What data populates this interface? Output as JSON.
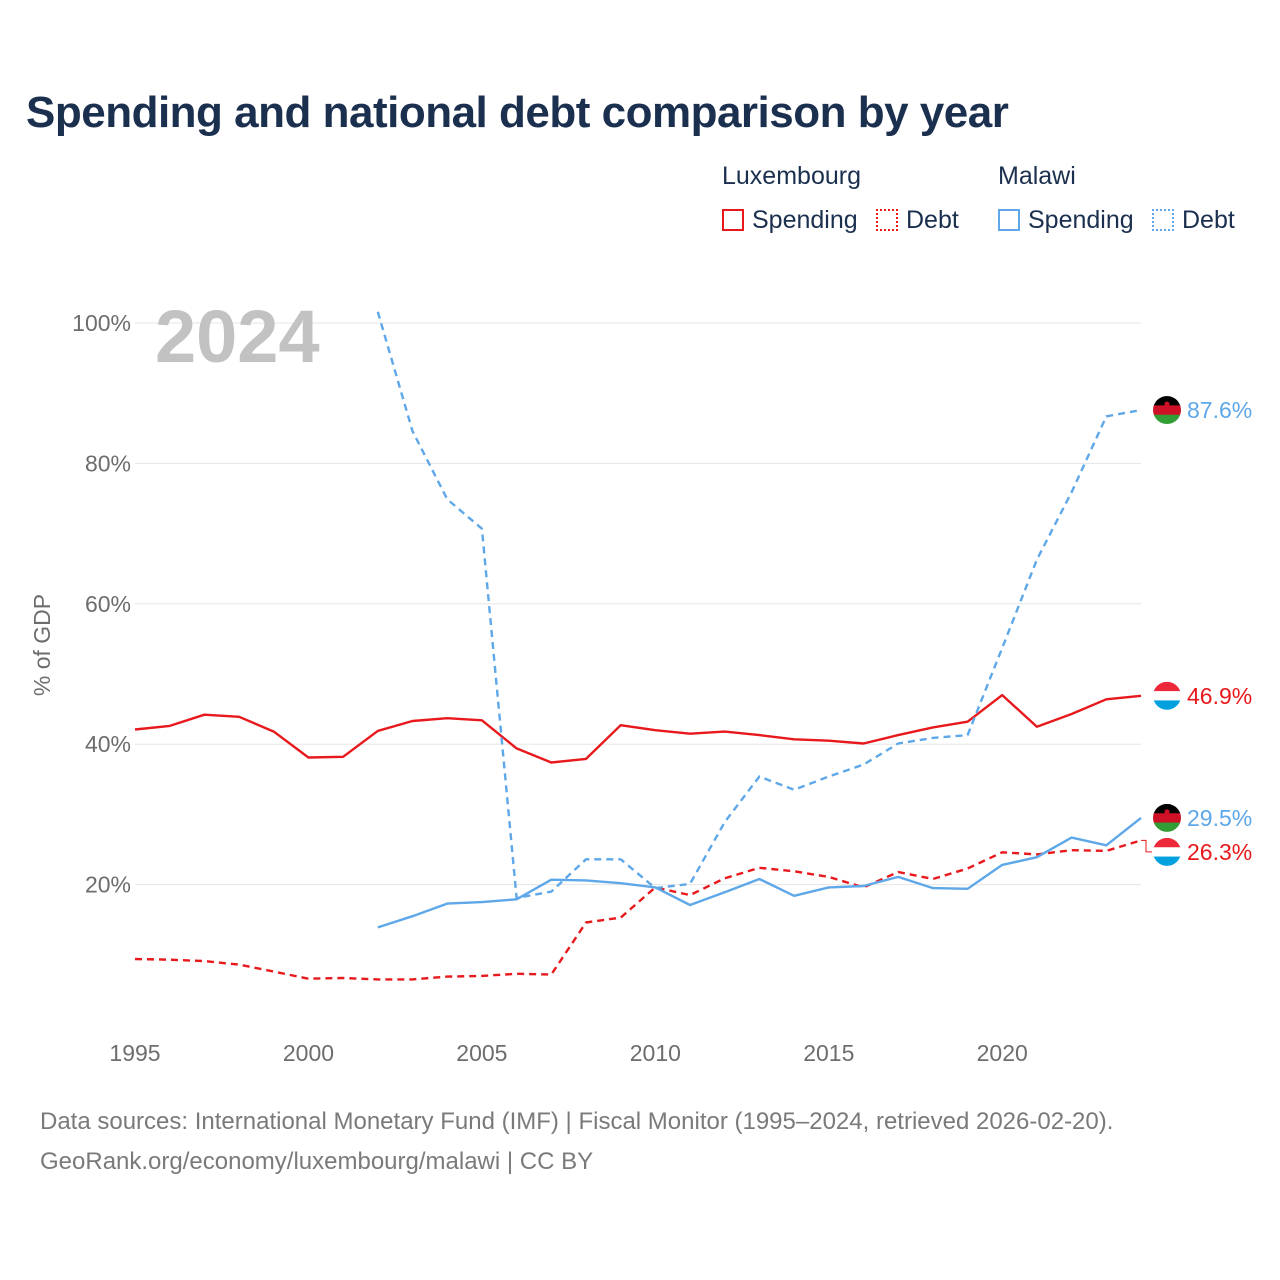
{
  "title": "Spending and national debt comparison by year",
  "legend": {
    "luxembourg": {
      "country": "Luxembourg",
      "spending": "Spending",
      "debt": "Debt"
    },
    "malawi": {
      "country": "Malawi",
      "spending": "Spending",
      "debt": "Debt"
    }
  },
  "colors": {
    "luxembourg": "#e8191c",
    "malawi": "#5ea7e8",
    "grid": "#e6e6e6",
    "axis_text": "#6d6d6d"
  },
  "year_label": "2024",
  "source": {
    "line1": "Data sources: International Monetary Fund (IMF) | Fiscal Monitor (1995–2024, retrieved 2026-02-20).",
    "line2": "GeoRank.org/economy/luxembourg/malawi | CC BY"
  },
  "chart_data": {
    "type": "line",
    "title": "Spending and national debt comparison by year",
    "xlabel": "",
    "ylabel": "% of GDP",
    "xlim": [
      1995,
      2024
    ],
    "ylim": [
      0,
      100
    ],
    "x_ticks": [
      1995,
      2000,
      2005,
      2010,
      2015,
      2020
    ],
    "y_ticks": [
      20,
      40,
      60,
      80,
      100
    ],
    "y_tick_labels": [
      "20%",
      "40%",
      "60%",
      "80%",
      "100%"
    ],
    "grid": true,
    "legend_position": "top-right",
    "series": [
      {
        "name": "Luxembourg Spending",
        "country": "Luxembourg",
        "measure": "Spending",
        "color": "#e8191c",
        "dash": "solid",
        "end_label": "46.9%",
        "x": [
          1995,
          1996,
          1997,
          1998,
          1999,
          2000,
          2001,
          2002,
          2003,
          2004,
          2005,
          2006,
          2007,
          2008,
          2009,
          2010,
          2011,
          2012,
          2013,
          2014,
          2015,
          2016,
          2017,
          2018,
          2019,
          2020,
          2021,
          2022,
          2023,
          2024
        ],
        "values": [
          42.1,
          42.6,
          44.2,
          43.9,
          41.8,
          38.1,
          38.2,
          41.9,
          43.3,
          43.7,
          43.4,
          39.4,
          37.4,
          37.9,
          42.7,
          42.0,
          41.5,
          41.8,
          41.3,
          40.7,
          40.5,
          40.1,
          41.3,
          42.4,
          43.2,
          47.0,
          42.5,
          44.3,
          46.4,
          46.9
        ]
      },
      {
        "name": "Luxembourg Debt",
        "country": "Luxembourg",
        "measure": "Debt",
        "color": "#e8191c",
        "dash": "dashed",
        "end_label": "26.3%",
        "x": [
          1995,
          1996,
          1997,
          1998,
          1999,
          2000,
          2001,
          2002,
          2003,
          2004,
          2005,
          2006,
          2007,
          2008,
          2009,
          2010,
          2011,
          2012,
          2013,
          2014,
          2015,
          2016,
          2017,
          2018,
          2019,
          2020,
          2021,
          2022,
          2023,
          2024
        ],
        "values": [
          9.4,
          9.3,
          9.1,
          8.6,
          7.6,
          6.6,
          6.7,
          6.5,
          6.5,
          6.9,
          7.0,
          7.3,
          7.2,
          14.6,
          15.3,
          19.6,
          18.5,
          20.9,
          22.4,
          21.9,
          21.1,
          19.6,
          21.8,
          20.8,
          22.3,
          24.6,
          24.3,
          24.9,
          24.8,
          26.3
        ]
      },
      {
        "name": "Malawi Spending",
        "country": "Malawi",
        "measure": "Spending",
        "color": "#5ea7e8",
        "dash": "solid",
        "end_label": "29.5%",
        "x": [
          2002,
          2003,
          2004,
          2005,
          2006,
          2007,
          2008,
          2009,
          2010,
          2011,
          2012,
          2013,
          2014,
          2015,
          2016,
          2017,
          2018,
          2019,
          2020,
          2021,
          2022,
          2023,
          2024
        ],
        "values": [
          13.9,
          15.5,
          17.3,
          17.5,
          17.9,
          20.7,
          20.6,
          20.2,
          19.6,
          17.1,
          18.9,
          20.8,
          18.4,
          19.6,
          19.8,
          21.1,
          19.5,
          19.4,
          22.8,
          23.9,
          26.7,
          25.6,
          29.5
        ]
      },
      {
        "name": "Malawi Debt",
        "country": "Malawi",
        "measure": "Debt",
        "color": "#5ea7e8",
        "dash": "dashed",
        "end_label": "87.6%",
        "x": [
          2002,
          2003,
          2004,
          2005,
          2006,
          2007,
          2008,
          2009,
          2010,
          2011,
          2012,
          2013,
          2014,
          2015,
          2016,
          2017,
          2018,
          2019,
          2020,
          2021,
          2022,
          2023,
          2024
        ],
        "values": [
          101.6,
          84.6,
          74.9,
          70.7,
          18.1,
          19.0,
          23.6,
          23.6,
          19.5,
          20.1,
          28.9,
          35.4,
          33.5,
          35.4,
          37.1,
          40.1,
          40.9,
          41.3,
          53.7,
          66.3,
          75.9,
          86.7,
          87.6
        ]
      }
    ]
  }
}
